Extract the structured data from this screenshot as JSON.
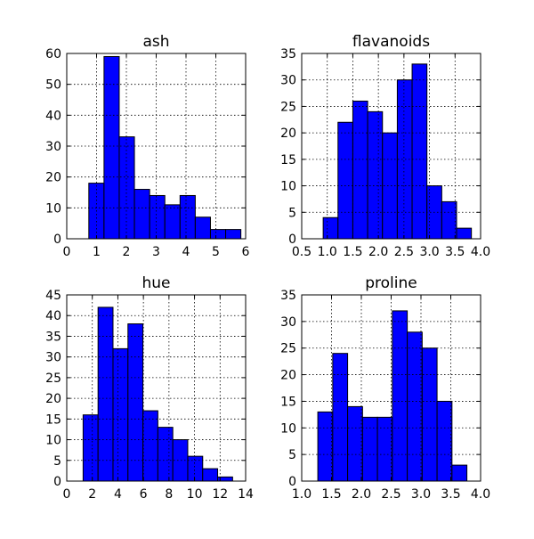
{
  "figure": {
    "bar_color": "#0000ff",
    "edge_color": "#000000",
    "grid": true
  },
  "chart_data": [
    {
      "type": "bar",
      "subtype": "histogram",
      "title": "ash",
      "xlim": [
        0,
        6
      ],
      "ylim": [
        0,
        60
      ],
      "xticks": [
        0,
        1,
        2,
        3,
        4,
        5,
        6
      ],
      "xtick_labels": [
        "0",
        "1",
        "2",
        "3",
        "4",
        "5",
        "6"
      ],
      "yticks": [
        0,
        10,
        20,
        30,
        40,
        50,
        60
      ],
      "ytick_labels": [
        "0",
        "10",
        "20",
        "30",
        "40",
        "50",
        "60"
      ],
      "bin_edges": [
        0.74,
        1.25,
        1.76,
        2.27,
        2.78,
        3.29,
        3.8,
        4.31,
        4.82,
        5.33,
        5.84
      ],
      "counts": [
        18,
        59,
        33,
        16,
        14,
        11,
        14,
        7,
        3,
        3
      ]
    },
    {
      "type": "bar",
      "subtype": "histogram",
      "title": "flavanoids",
      "xlim": [
        0.5,
        4.0
      ],
      "ylim": [
        0,
        35
      ],
      "xticks": [
        0.5,
        1.0,
        1.5,
        2.0,
        2.5,
        3.0,
        3.5,
        4.0
      ],
      "xtick_labels": [
        "0.5",
        "1.0",
        "1.5",
        "2.0",
        "2.5",
        "3.0",
        "3.5",
        "4.0"
      ],
      "yticks": [
        0,
        5,
        10,
        15,
        20,
        25,
        30,
        35
      ],
      "ytick_labels": [
        "0",
        "5",
        "10",
        "15",
        "20",
        "25",
        "30",
        "35"
      ],
      "bin_edges": [
        0.92,
        1.21,
        1.5,
        1.79,
        2.08,
        2.37,
        2.66,
        2.95,
        3.24,
        3.53,
        3.82
      ],
      "counts": [
        4,
        22,
        26,
        24,
        20,
        30,
        33,
        10,
        7,
        2
      ]
    },
    {
      "type": "bar",
      "subtype": "histogram",
      "title": "hue",
      "xlim": [
        0,
        14
      ],
      "ylim": [
        0,
        45
      ],
      "xticks": [
        0,
        2,
        4,
        6,
        8,
        10,
        12,
        14
      ],
      "xtick_labels": [
        "0",
        "2",
        "4",
        "6",
        "8",
        "10",
        "12",
        "14"
      ],
      "yticks": [
        0,
        5,
        10,
        15,
        20,
        25,
        30,
        35,
        40,
        45
      ],
      "ytick_labels": [
        "0",
        "5",
        "10",
        "15",
        "20",
        "25",
        "30",
        "35",
        "40",
        "45"
      ],
      "bin_edges": [
        1.28,
        2.45,
        3.62,
        4.79,
        5.96,
        7.13,
        8.3,
        9.47,
        10.64,
        11.81,
        12.98
      ],
      "counts": [
        16,
        42,
        32,
        38,
        17,
        13,
        10,
        6,
        3,
        1
      ]
    },
    {
      "type": "bar",
      "subtype": "histogram",
      "title": "proline",
      "xlim": [
        1.0,
        4.0
      ],
      "ylim": [
        0,
        35
      ],
      "xticks": [
        1.0,
        1.5,
        2.0,
        2.5,
        3.0,
        3.5,
        4.0
      ],
      "xtick_labels": [
        "1.0",
        "1.5",
        "2.0",
        "2.5",
        "3.0",
        "3.5",
        "4.0"
      ],
      "yticks": [
        0,
        5,
        10,
        15,
        20,
        25,
        30,
        35
      ],
      "ytick_labels": [
        "0",
        "5",
        "10",
        "15",
        "20",
        "25",
        "30",
        "35"
      ],
      "bin_edges": [
        1.27,
        1.52,
        1.77,
        2.02,
        2.27,
        2.52,
        2.77,
        3.02,
        3.27,
        3.52,
        3.77
      ],
      "counts": [
        13,
        24,
        14,
        12,
        12,
        32,
        28,
        25,
        15,
        3
      ]
    }
  ]
}
